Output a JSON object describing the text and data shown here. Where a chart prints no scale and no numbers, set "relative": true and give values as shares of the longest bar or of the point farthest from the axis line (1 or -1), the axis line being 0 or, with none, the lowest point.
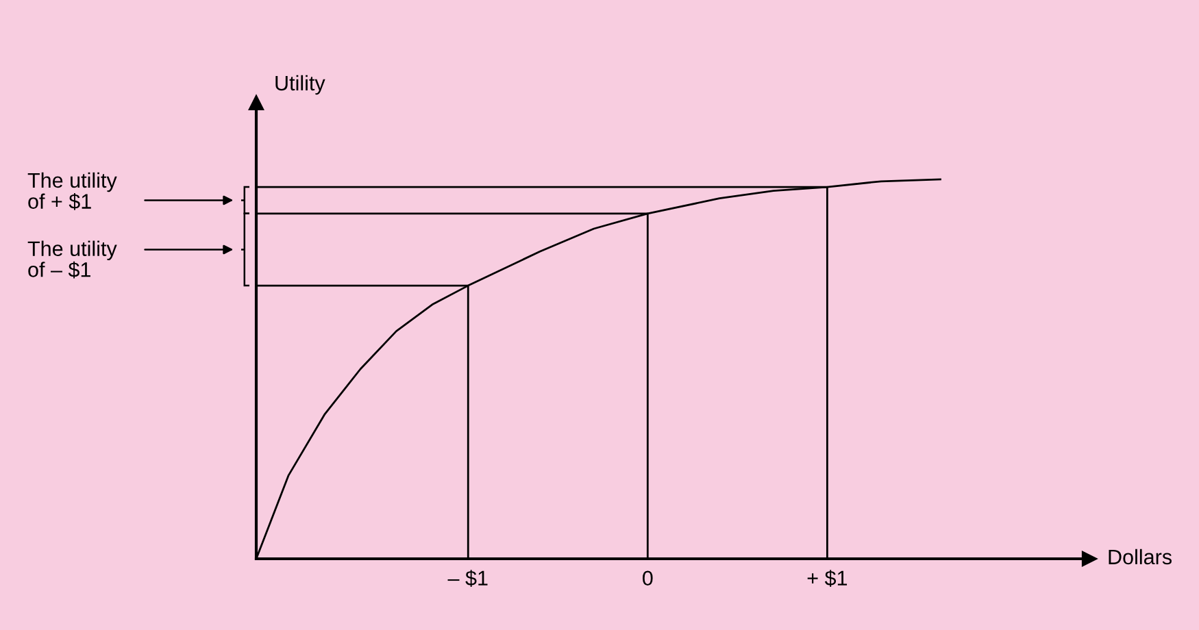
{
  "chart_data": {
    "type": "line",
    "relative": true,
    "xlabel": "Dollars",
    "ylabel": "Utility",
    "xlim": [
      -2.18,
      2.46
    ],
    "xticks": [
      {
        "value": -1,
        "label": "– $1"
      },
      {
        "value": 0,
        "label": "0"
      },
      {
        "value": 1,
        "label": "+ $1"
      }
    ],
    "annotations": [
      "The utility\nof + $1",
      "The utility\nof – $1"
    ],
    "grid": false,
    "marker": "none",
    "line_style": "solid",
    "series": [
      {
        "color": "#000000",
        "x": [
          -2.18,
          -2.0,
          -1.8,
          -1.6,
          -1.4,
          -1.2,
          -1.0,
          -0.6,
          -0.3,
          0,
          0.4,
          0.7,
          1.0,
          1.3,
          1.63
        ],
        "values": [
          0,
          0.22,
          0.38,
          0.5,
          0.6,
          0.67,
          0.72,
          0.81,
          0.87,
          0.91,
          0.95,
          0.97,
          0.98,
          0.995,
          1.0
        ]
      },
      {
        "color": "#000000",
        "x": [
          -2.18,
          -1,
          -1,
          null,
          -2.18,
          0,
          0,
          null,
          -2.18,
          1,
          1
        ],
        "values": [
          0.72,
          0.72,
          0,
          null,
          0.91,
          0.91,
          0,
          null,
          0.98,
          0.98,
          0
        ]
      }
    ]
  }
}
